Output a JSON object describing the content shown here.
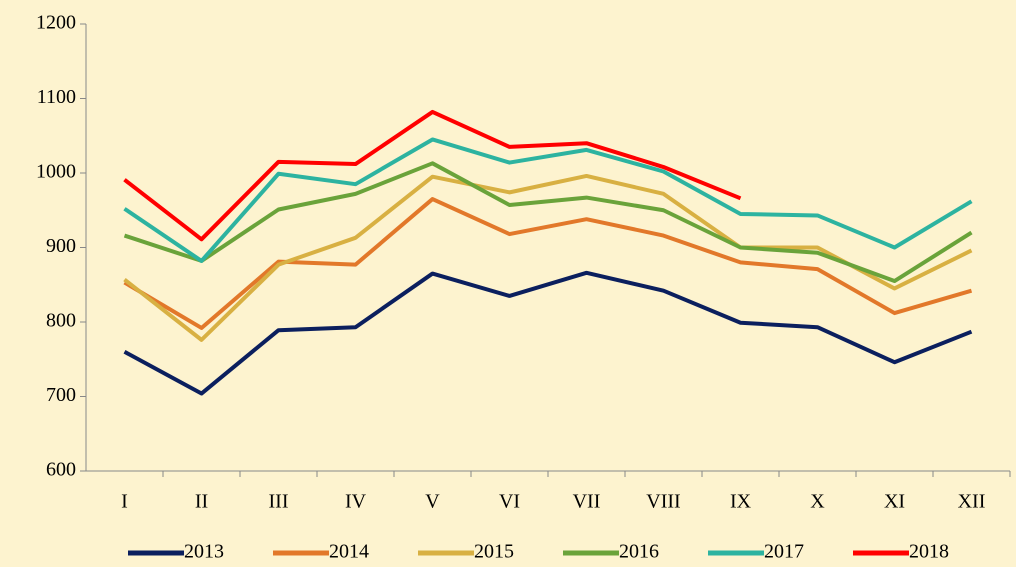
{
  "chart_data": {
    "type": "line",
    "categories": [
      "I",
      "II",
      "III",
      "IV",
      "V",
      "VI",
      "VII",
      "VIII",
      "IX",
      "X",
      "XI",
      "XII"
    ],
    "series": [
      {
        "name": "2013",
        "color": "#0b1f5e",
        "values": [
          760,
          704,
          789,
          793,
          865,
          835,
          866,
          842,
          799,
          793,
          746,
          787
        ]
      },
      {
        "name": "2014",
        "color": "#e2782a",
        "values": [
          853,
          792,
          881,
          877,
          965,
          918,
          938,
          916,
          880,
          871,
          812,
          842
        ]
      },
      {
        "name": "2015",
        "color": "#d8b042",
        "values": [
          857,
          776,
          877,
          913,
          995,
          974,
          996,
          972,
          900,
          900,
          845,
          896
        ]
      },
      {
        "name": "2016",
        "color": "#6aa33a",
        "values": [
          916,
          882,
          951,
          972,
          1013,
          957,
          967,
          950,
          900,
          893,
          855,
          920
        ]
      },
      {
        "name": "2017",
        "color": "#2db3a0",
        "values": [
          952,
          882,
          999,
          985,
          1045,
          1014,
          1031,
          1002,
          945,
          943,
          900,
          962
        ]
      },
      {
        "name": "2018",
        "color": "#ff0000",
        "values": [
          991,
          911,
          1015,
          1012,
          1082,
          1035,
          1040,
          1008,
          966,
          null,
          null,
          null
        ]
      }
    ],
    "ylim": [
      600,
      1200
    ],
    "yticks": [
      600,
      700,
      800,
      900,
      1000,
      1100,
      1200
    ],
    "legend": "bottom"
  }
}
